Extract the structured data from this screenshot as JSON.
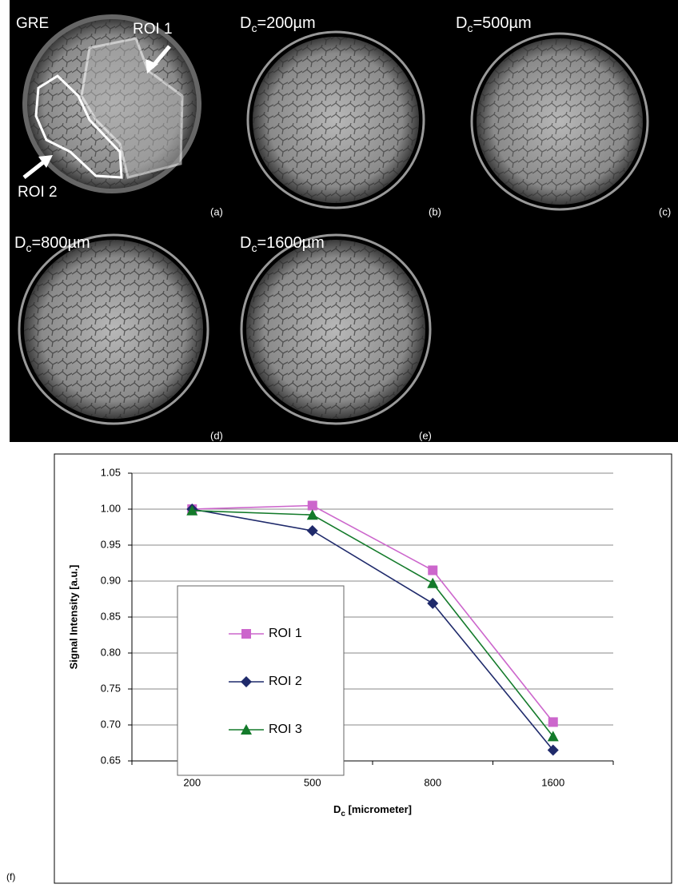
{
  "panels": [
    {
      "title_parts": [
        "GRE"
      ],
      "label": "(a)",
      "annotations": [
        "ROI 1",
        "ROI 2"
      ]
    },
    {
      "title_parts": [
        "D",
        "c",
        "=200µm"
      ],
      "label": "(b)"
    },
    {
      "title_parts": [
        "D",
        "c",
        "=500µm"
      ],
      "label": "(c)"
    },
    {
      "title_parts": [
        "D",
        "c",
        "=800µm"
      ],
      "label": "(d)"
    },
    {
      "title_parts": [
        "D",
        "c",
        "=1600µm"
      ],
      "label": "(e)"
    }
  ],
  "chart_data": {
    "type": "line",
    "panel_label": "(f)",
    "y_label": "Signal Intensity [a.u.]",
    "x_label_parts": [
      "D",
      "c",
      " [micrometer]"
    ],
    "categories": [
      "200",
      "500",
      "800",
      "1600"
    ],
    "series": [
      {
        "name": "ROI 1",
        "color": "#cc66cc",
        "marker": "square",
        "values": [
          1.0,
          1.005,
          0.915,
          0.704
        ]
      },
      {
        "name": "ROI 2",
        "color": "#1f2a6b",
        "marker": "diamond",
        "values": [
          1.0,
          0.97,
          0.869,
          0.665
        ]
      },
      {
        "name": "ROI 3",
        "color": "#137a2a",
        "marker": "triangle",
        "values": [
          0.998,
          0.992,
          0.897,
          0.684
        ]
      }
    ],
    "ylim": [
      0.65,
      1.05
    ],
    "yticks": [
      0.65,
      {
        "value": 0.7,
        "label": "0.70"
      },
      0.75,
      {
        "value": 0.8,
        "label": "0.80"
      },
      0.85,
      {
        "value": 0.9,
        "label": "0.90"
      },
      0.95,
      {
        "value": 1.0,
        "label": "1.00"
      },
      1.05
    ],
    "grid": true,
    "legend": "left"
  }
}
